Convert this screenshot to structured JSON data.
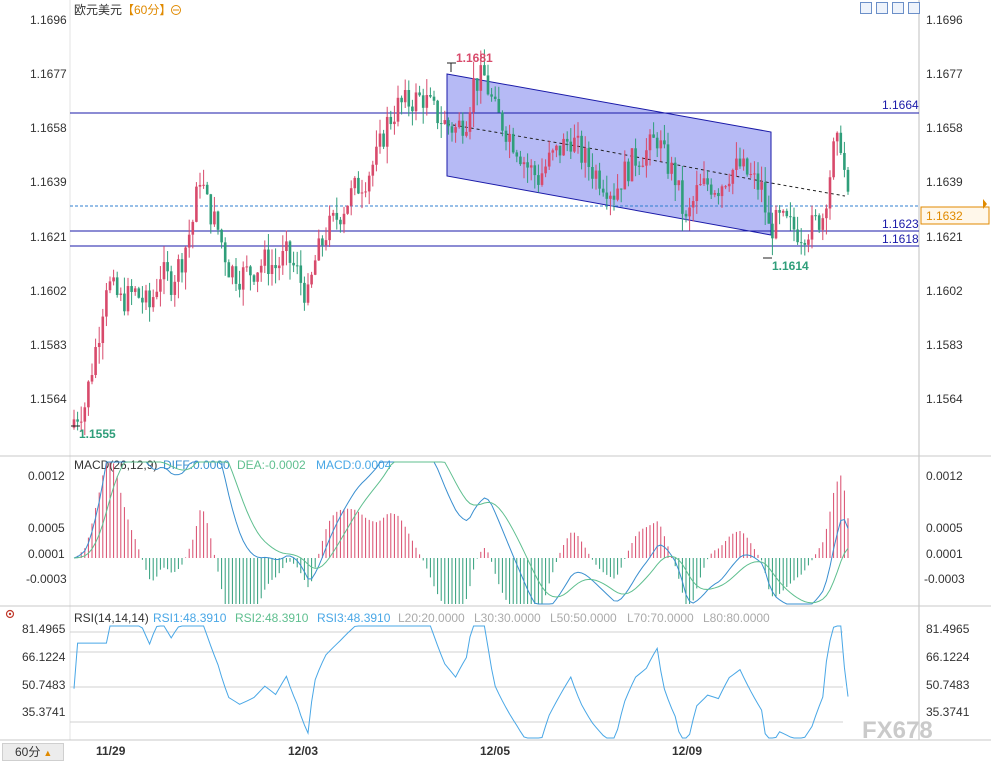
{
  "header": {
    "symbol": "欧元美元",
    "period": "【60分】"
  },
  "price_axis": {
    "labels": [
      "1.1696",
      "1.1677",
      "1.1658",
      "1.1639",
      "1.1621",
      "1.1602",
      "1.1583",
      "1.1564"
    ]
  },
  "annotations": {
    "high_label": "1.1681",
    "low_label": "1.1614",
    "start_low_label": "1.1555",
    "line_upper": "1.1664",
    "line_mid": "1.1623",
    "line_low": "1.1618",
    "current_price": "1.1632"
  },
  "macd": {
    "title": "MACD(26,12,9)",
    "diff": "DIFF:0.0000",
    "dea": "DEA:-0.0002",
    "macd": "MACD:0.0004",
    "axis": [
      "0.0012",
      "0.0005",
      "0.0001",
      "-0.0003"
    ]
  },
  "rsi": {
    "title": "RSI(14,14,14)",
    "rsi1": "RSI1:48.3910",
    "rsi2": "RSI2:48.3910",
    "rsi3": "RSI3:48.3910",
    "l20": "L20:20.0000",
    "l30": "L30:30.0000",
    "l50": "L50:50.0000",
    "l70": "L70:70.0000",
    "l80": "L80:80.0000",
    "axis": [
      "81.4965",
      "66.1224",
      "50.7483",
      "35.3741"
    ]
  },
  "time_axis": {
    "labels": [
      "11/29",
      "12/03",
      "12/05",
      "12/09"
    ]
  },
  "footer": {
    "period_button": "60分",
    "watermark_brand": "FX678"
  },
  "colors": {
    "up": "#d84a6b",
    "down": "#2f9e7a",
    "channel_fill": "#9ea3f2",
    "line_blue": "#1a1aa8",
    "macd_diff": "#3a8fd0",
    "macd_dea": "#5fbf8f",
    "rsi_line": "#49a7e6"
  },
  "chart_data": [
    {
      "type": "candlestick",
      "title": "欧元美元【60分】",
      "x_labels": [
        "11/29",
        "12/03",
        "12/05",
        "12/09"
      ],
      "ylim": [
        1.1545,
        1.1701
      ],
      "y_ticks": [
        1.1696,
        1.1677,
        1.1658,
        1.1639,
        1.1621,
        1.1602,
        1.1583,
        1.1564
      ],
      "close_path": [
        [
          0,
          1.1557
        ],
        [
          3,
          1.1562
        ],
        [
          7,
          1.1588
        ],
        [
          9,
          1.1605
        ],
        [
          13,
          1.1598
        ],
        [
          17,
          1.1601
        ],
        [
          21,
          1.1596
        ],
        [
          24,
          1.1608
        ],
        [
          27,
          1.1605
        ],
        [
          30,
          1.1613
        ],
        [
          33,
          1.1626
        ],
        [
          35,
          1.1642
        ],
        [
          37,
          1.1632
        ],
        [
          40,
          1.1623
        ],
        [
          43,
          1.161
        ],
        [
          46,
          1.1607
        ],
        [
          50,
          1.1609
        ],
        [
          53,
          1.1612
        ],
        [
          56,
          1.161
        ],
        [
          59,
          1.1614
        ],
        [
          62,
          1.1608
        ],
        [
          65,
          1.1599
        ],
        [
          67,
          1.1612
        ],
        [
          70,
          1.1622
        ],
        [
          74,
          1.1629
        ],
        [
          78,
          1.1637
        ],
        [
          81,
          1.1641
        ],
        [
          84,
          1.1648
        ],
        [
          87,
          1.166
        ],
        [
          90,
          1.1666
        ],
        [
          94,
          1.1668
        ],
        [
          97,
          1.1669
        ],
        [
          100,
          1.1664
        ],
        [
          103,
          1.166
        ],
        [
          106,
          1.1658
        ],
        [
          109,
          1.1662
        ],
        [
          111,
          1.1674
        ],
        [
          114,
          1.1676
        ],
        [
          117,
          1.1664
        ],
        [
          120,
          1.1658
        ],
        [
          123,
          1.1652
        ],
        [
          126,
          1.1645
        ],
        [
          129,
          1.1641
        ],
        [
          132,
          1.1647
        ],
        [
          135,
          1.1651
        ],
        [
          138,
          1.1655
        ],
        [
          141,
          1.1649
        ],
        [
          144,
          1.1644
        ],
        [
          147,
          1.164
        ],
        [
          150,
          1.1636
        ],
        [
          153,
          1.1643
        ],
        [
          156,
          1.1648
        ],
        [
          159,
          1.165
        ],
        [
          162,
          1.1655
        ],
        [
          164,
          1.1648
        ],
        [
          167,
          1.1641
        ],
        [
          170,
          1.1625
        ],
        [
          173,
          1.1636
        ],
        [
          176,
          1.1639
        ],
        [
          179,
          1.1638
        ],
        [
          182,
          1.1643
        ],
        [
          185,
          1.1645
        ],
        [
          188,
          1.1641
        ],
        [
          191,
          1.1637
        ],
        [
          193,
          1.1623
        ],
        [
          196,
          1.1626
        ],
        [
          199,
          1.1624
        ],
        [
          202,
          1.1622
        ],
        [
          205,
          1.1624
        ],
        [
          208,
          1.1628
        ],
        [
          211,
          1.165
        ],
        [
          213,
          1.1654
        ],
        [
          215,
          1.1632
        ]
      ],
      "markers": {
        "high": 1.1681,
        "low": 1.1614,
        "start_low": 1.1555
      },
      "horizontal_lines": [
        1.1664,
        1.1623,
        1.1618
      ],
      "current_price": 1.1632,
      "channel": {
        "upper": [
          [
            116,
            1.1679
          ],
          [
            194,
            1.1657
          ]
        ],
        "lower": [
          [
            116,
            1.1642
          ],
          [
            194,
            1.1622
          ]
        ]
      }
    },
    {
      "type": "bar",
      "title": "MACD(26,12,9)",
      "series": [
        {
          "name": "DIFF",
          "last": 0.0
        },
        {
          "name": "DEA",
          "last": -0.0002
        },
        {
          "name": "MACD",
          "last": 0.0004
        }
      ],
      "y_ticks": [
        0.0012,
        0.0005,
        0.0001,
        -0.0003
      ]
    },
    {
      "type": "line",
      "title": "RSI(14,14,14)",
      "series": [
        {
          "name": "RSI1",
          "last": 48.391
        },
        {
          "name": "RSI2",
          "last": 48.391
        },
        {
          "name": "RSI3",
          "last": 48.391
        }
      ],
      "reference_levels": [
        20,
        30,
        50,
        70,
        80
      ],
      "y_ticks": [
        81.4965,
        66.1224,
        50.7483,
        35.3741
      ]
    }
  ]
}
